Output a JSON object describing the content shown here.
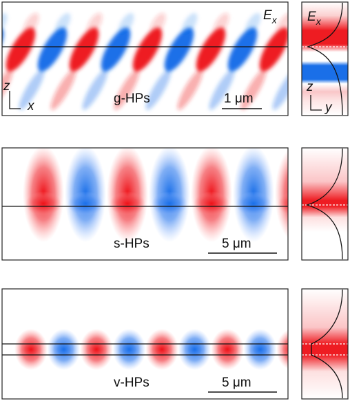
{
  "panels": [
    {
      "field_label": {
        "symbol": "E",
        "subscript": "x"
      },
      "axes": [
        "z",
        "x"
      ],
      "mode": "g-HPs",
      "scale_bar": "1 μm",
      "side": {
        "field_label": {
          "symbol": "E",
          "subscript": "x"
        },
        "axes": [
          "z",
          "y"
        ]
      }
    },
    {
      "mode": "s-HPs",
      "scale_bar": "5 μm"
    },
    {
      "mode": "v-HPs",
      "scale_bar": "5 μm"
    }
  ]
}
